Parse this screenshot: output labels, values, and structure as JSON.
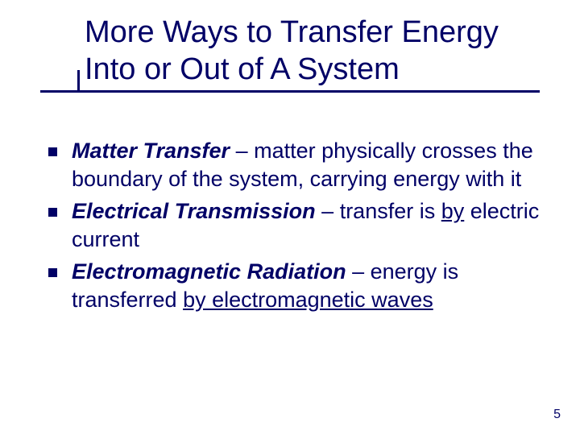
{
  "colors": {
    "text": "#000066",
    "background": "#ffffff",
    "underline": "#000066",
    "bullet": "#000066"
  },
  "typography": {
    "family": "Verdana",
    "title_fontsize": 38,
    "body_fontsize": 27,
    "pagenum_fontsize": 16
  },
  "title": "More Ways to Transfer Energy Into or Out of A System",
  "bullets": [
    {
      "term": "Matter Transfer",
      "sep": " – ",
      "desc_a": "matter physically crosses the boundary of the system, carrying energy with it",
      "underlined_a": "",
      "desc_b": "",
      "underlined_b": ""
    },
    {
      "term": "Electrical Transmission",
      "sep": " – ",
      "desc_a": "transfer is ",
      "underlined_a": "by",
      "desc_b": " electric current",
      "underlined_b": ""
    },
    {
      "term": "Electromagnetic Radiation",
      "sep": " – ",
      "desc_a": "energy is transferred ",
      "underlined_a": "by electromagnetic waves",
      "desc_b": "",
      "underlined_b": ""
    }
  ],
  "page_number": "5"
}
